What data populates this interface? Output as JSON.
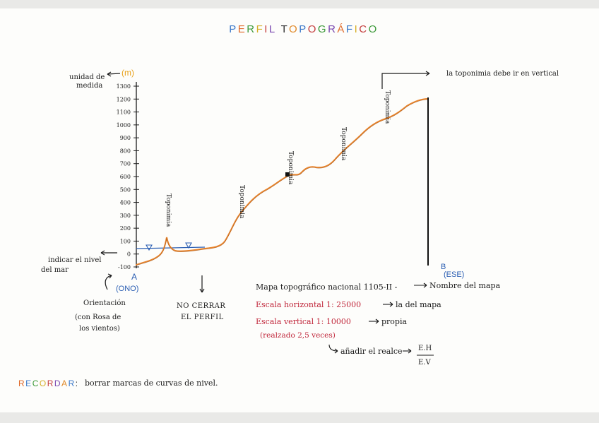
{
  "title": "PERFIL TOPOGRÁFICO",
  "title_colors": [
    "#3a78c9",
    "#e06a2a",
    "#3d9a3a",
    "#d6b02a",
    "#c43d3d",
    "#7a48b0",
    "#2a2a2a",
    "#e08a2a",
    "#3a78c9",
    "#c43d3d",
    "#3d9a3a",
    "#7a48b0",
    "#e06a2a",
    "#3a78c9",
    "#d6b02a",
    "#c43d3d",
    "#3d9a3a",
    "#7a48b0"
  ],
  "unit_note": {
    "label": "unidad de medida",
    "unit": "(m)",
    "unit_color": "#e8a21c"
  },
  "y_ticks": [
    "1300",
    "1200",
    "1100",
    "1000",
    "900",
    "800",
    "700",
    "600",
    "500",
    "400",
    "300",
    "200",
    "100",
    "0",
    "-100"
  ],
  "sea_level_note": "indicar el nivel del mar",
  "point_a": {
    "letter": "A",
    "orientation": "(ONO)",
    "color": "#2c5fb3"
  },
  "point_b": {
    "letter": "B",
    "orientation": "(ESE)",
    "color": "#2c5fb3"
  },
  "orientation_note": "Orientación (con Rosa de los vientos)",
  "no_close_note": "NO CERRAR EL PERFIL",
  "toponimia_label": "Toponimia",
  "toponimia_vertical_note": "la toponimia debe ir en vertical",
  "map_info": {
    "map_title": "Mapa topográfico nacional 1105-II -",
    "map_title_note": "Nombre del mapa",
    "h_scale": "Escala horizontal 1: 25000",
    "h_scale_note": "la del mapa",
    "v_scale": "Escala vertical 1: 10000",
    "v_scale_note": "propia",
    "exaggeration": "(realzado 2,5 veces)",
    "add_note": "añadir el realce",
    "fraction_num": "E.H",
    "fraction_den": "E.V",
    "red_color": "#c0263a"
  },
  "reminder": {
    "colored_word": "RECORDAR:",
    "colored_word_colors": [
      "#e06a2a",
      "#3a78c9",
      "#3d9a3a",
      "#d6b02a",
      "#c43d3d",
      "#7a48b0",
      "#e08a2a",
      "#3a78c9",
      "#2a2a2a"
    ],
    "text": "borrar marcas de curvas de nivel."
  },
  "colors": {
    "profile": "#e8842c",
    "sea": "#2c5fb3",
    "ink": "#1b1b1b"
  }
}
